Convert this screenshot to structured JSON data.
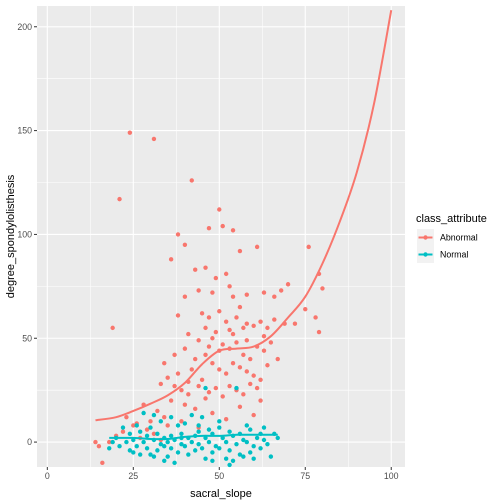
{
  "chart_data": {
    "type": "scatter",
    "xlabel": "sacral_slope",
    "ylabel": "degree_spondylolisthesis",
    "xlim": [
      -3,
      104
    ],
    "ylim": [
      -12,
      210
    ],
    "xticks": [
      0,
      25,
      50,
      75,
      100
    ],
    "yticks": [
      0,
      50,
      100,
      150,
      200
    ],
    "grid": true,
    "legend": {
      "title": "class_attribute",
      "position": "right",
      "entries": [
        "Abnormal",
        "Normal"
      ]
    },
    "series": [
      {
        "name": "Abnormal",
        "color": "#F8766D",
        "points": [
          [
            24,
            149
          ],
          [
            31,
            146
          ],
          [
            21,
            117
          ],
          [
            42,
            126
          ],
          [
            50,
            112
          ],
          [
            51,
            104
          ],
          [
            54,
            102
          ],
          [
            61,
            94
          ],
          [
            76,
            94
          ],
          [
            38,
            100
          ],
          [
            47,
            103
          ],
          [
            40,
            95
          ],
          [
            36,
            88
          ],
          [
            56,
            92
          ],
          [
            49,
            79
          ],
          [
            43,
            83
          ],
          [
            46,
            84
          ],
          [
            53,
            75
          ],
          [
            52,
            81
          ],
          [
            44,
            73
          ],
          [
            48,
            72
          ],
          [
            54,
            70
          ],
          [
            58,
            71
          ],
          [
            63,
            72
          ],
          [
            56,
            65
          ],
          [
            66,
            70
          ],
          [
            70,
            76
          ],
          [
            79,
            81
          ],
          [
            80,
            74
          ],
          [
            68,
            73
          ],
          [
            75,
            64
          ],
          [
            78,
            60
          ],
          [
            79,
            53
          ],
          [
            19,
            55
          ],
          [
            38,
            61
          ],
          [
            40,
            70
          ],
          [
            45,
            62
          ],
          [
            47,
            60
          ],
          [
            50,
            63
          ],
          [
            52,
            58
          ],
          [
            55,
            60
          ],
          [
            58,
            57
          ],
          [
            60,
            56
          ],
          [
            62,
            58
          ],
          [
            64,
            55
          ],
          [
            57,
            55
          ],
          [
            53,
            54
          ],
          [
            49,
            53
          ],
          [
            46,
            55
          ],
          [
            44,
            49
          ],
          [
            41,
            52
          ],
          [
            48,
            50
          ],
          [
            51,
            47
          ],
          [
            55,
            48
          ],
          [
            58,
            49
          ],
          [
            61,
            46
          ],
          [
            63,
            44
          ],
          [
            65,
            48
          ],
          [
            66,
            59
          ],
          [
            69,
            57
          ],
          [
            72,
            57
          ],
          [
            67,
            40
          ],
          [
            37,
            42
          ],
          [
            34,
            38
          ],
          [
            40,
            45
          ],
          [
            43,
            40
          ],
          [
            46,
            42
          ],
          [
            48,
            38
          ],
          [
            50,
            35
          ],
          [
            52,
            33
          ],
          [
            54,
            38
          ],
          [
            56,
            36
          ],
          [
            58,
            34
          ],
          [
            60,
            32
          ],
          [
            62,
            30
          ],
          [
            64,
            37
          ],
          [
            35,
            31
          ],
          [
            33,
            28
          ],
          [
            37,
            27
          ],
          [
            39,
            25
          ],
          [
            41,
            23
          ],
          [
            44,
            27
          ],
          [
            47,
            24
          ],
          [
            49,
            26
          ],
          [
            51,
            22
          ],
          [
            53,
            27
          ],
          [
            55,
            25
          ],
          [
            57,
            23
          ],
          [
            59,
            28
          ],
          [
            61,
            26
          ],
          [
            42,
            35
          ],
          [
            45,
            30
          ],
          [
            38,
            33
          ],
          [
            36,
            20
          ],
          [
            40,
            18
          ],
          [
            43,
            16
          ],
          [
            46,
            21
          ],
          [
            32,
            15
          ],
          [
            34,
            12
          ],
          [
            28,
            18
          ],
          [
            30,
            10
          ],
          [
            25,
            8
          ],
          [
            22,
            5
          ],
          [
            20,
            3
          ],
          [
            18,
            0
          ],
          [
            15,
            -2
          ],
          [
            14,
            0
          ],
          [
            27,
            2
          ],
          [
            29,
            6
          ],
          [
            31,
            4
          ],
          [
            35,
            8
          ],
          [
            33,
            1
          ],
          [
            16,
            -10
          ],
          [
            23,
            12
          ],
          [
            26,
            9
          ],
          [
            39,
            10
          ],
          [
            44,
            7
          ],
          [
            48,
            14
          ],
          [
            52,
            11
          ],
          [
            56,
            17
          ],
          [
            60,
            13
          ],
          [
            62,
            20
          ],
          [
            41,
            29
          ],
          [
            53,
            45
          ],
          [
            57,
            42
          ],
          [
            59,
            40
          ],
          [
            47,
            46
          ],
          [
            50,
            44
          ],
          [
            54,
            52
          ],
          [
            63,
            51
          ]
        ],
        "curve": [
          [
            14,
            10.5
          ],
          [
            20,
            12
          ],
          [
            25,
            15
          ],
          [
            30,
            18.5
          ],
          [
            35,
            22.5
          ],
          [
            40,
            28.5
          ],
          [
            45,
            37.5
          ],
          [
            50,
            44
          ],
          [
            55,
            45
          ],
          [
            60,
            46
          ],
          [
            65,
            51
          ],
          [
            70,
            60
          ],
          [
            75,
            70
          ],
          [
            80,
            86
          ],
          [
            85,
            106
          ],
          [
            90,
            130
          ],
          [
            95,
            163
          ],
          [
            100,
            208
          ]
        ]
      },
      {
        "name": "Normal",
        "color": "#00BFC4",
        "points": [
          [
            28,
            14
          ],
          [
            31,
            13
          ],
          [
            36,
            12
          ],
          [
            42,
            13
          ],
          [
            45,
            12
          ],
          [
            33,
            10
          ],
          [
            26,
            8
          ],
          [
            30,
            7
          ],
          [
            38,
            8
          ],
          [
            40,
            9
          ],
          [
            44,
            8
          ],
          [
            47,
            6
          ],
          [
            50,
            7
          ],
          [
            53,
            5
          ],
          [
            56,
            4
          ],
          [
            59,
            6
          ],
          [
            62,
            4
          ],
          [
            66,
            4
          ],
          [
            22,
            7
          ],
          [
            24,
            4
          ],
          [
            27,
            5
          ],
          [
            29,
            3
          ],
          [
            32,
            4
          ],
          [
            34,
            2
          ],
          [
            36,
            3
          ],
          [
            39,
            4
          ],
          [
            41,
            2
          ],
          [
            43,
            3
          ],
          [
            46,
            2
          ],
          [
            48,
            4
          ],
          [
            51,
            2
          ],
          [
            54,
            3
          ],
          [
            57,
            1
          ],
          [
            61,
            2
          ],
          [
            63,
            1
          ],
          [
            20,
            2
          ],
          [
            23,
            0
          ],
          [
            25,
            1
          ],
          [
            28,
            0
          ],
          [
            31,
            1
          ],
          [
            33,
            -1
          ],
          [
            35,
            0
          ],
          [
            37,
            1
          ],
          [
            39,
            -1
          ],
          [
            42,
            0
          ],
          [
            44,
            -1
          ],
          [
            47,
            0
          ],
          [
            49,
            -2
          ],
          [
            52,
            0
          ],
          [
            55,
            -1
          ],
          [
            58,
            0
          ],
          [
            60,
            -2
          ],
          [
            64,
            -1
          ],
          [
            18,
            -3
          ],
          [
            21,
            -2
          ],
          [
            24,
            -4
          ],
          [
            26,
            -2
          ],
          [
            29,
            -3
          ],
          [
            32,
            -4
          ],
          [
            34,
            -2
          ],
          [
            36,
            -3
          ],
          [
            38,
            -5
          ],
          [
            40,
            -2
          ],
          [
            43,
            -4
          ],
          [
            45,
            -3
          ],
          [
            48,
            -5
          ],
          [
            50,
            -3
          ],
          [
            53,
            -4
          ],
          [
            56,
            -6
          ],
          [
            59,
            -5
          ],
          [
            62,
            -3
          ],
          [
            30,
            -6
          ],
          [
            35,
            -7
          ],
          [
            41,
            -6
          ],
          [
            46,
            -8
          ],
          [
            37,
            -10
          ],
          [
            52,
            -8
          ],
          [
            57,
            -7
          ],
          [
            54,
            -9
          ],
          [
            60,
            -8
          ],
          [
            65,
            -7
          ],
          [
            55,
            26
          ],
          [
            46,
            26
          ],
          [
            25,
            -5
          ],
          [
            39,
            2
          ],
          [
            44,
            5
          ],
          [
            50,
            10
          ],
          [
            58,
            8
          ],
          [
            63,
            7
          ],
          [
            67,
            2
          ],
          [
            19,
            0
          ],
          [
            27,
            -6
          ],
          [
            31,
            -7
          ],
          [
            34,
            -9
          ],
          [
            48,
            -9
          ],
          [
            53,
            -11
          ]
        ],
        "curve": [
          [
            18,
            2
          ],
          [
            25,
            2
          ],
          [
            30,
            1.5
          ],
          [
            35,
            1.5
          ],
          [
            40,
            2.5
          ],
          [
            45,
            3
          ],
          [
            50,
            3
          ],
          [
            55,
            3.5
          ],
          [
            60,
            3.5
          ],
          [
            67,
            3.5
          ]
        ]
      }
    ]
  }
}
